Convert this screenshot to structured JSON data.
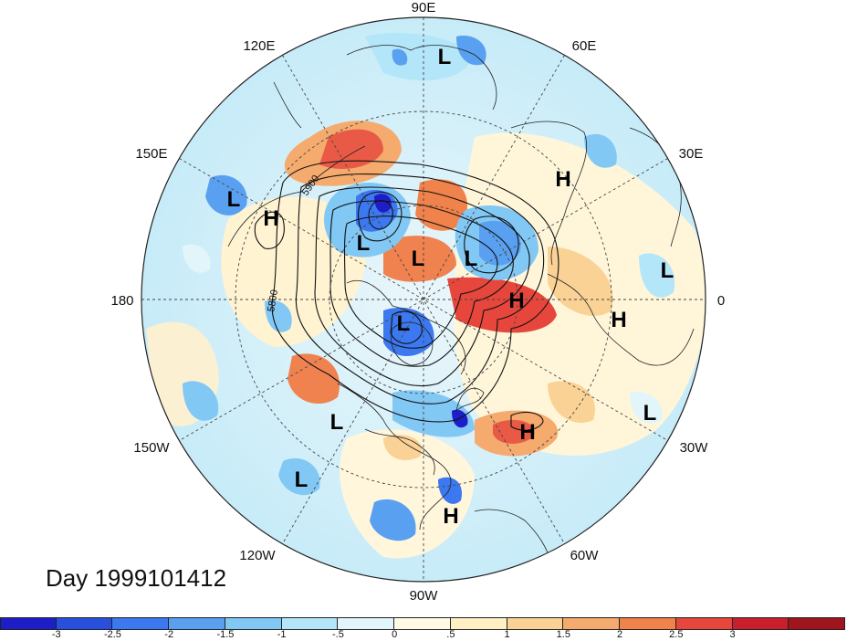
{
  "title": "Day 1999101412",
  "longitude_labels": {
    "top": "90E",
    "top_right": "60E",
    "right_upper": "30E",
    "right": "0",
    "right_lower": "30W",
    "bottom_right": "60W",
    "bottom": "90W",
    "bottom_left": "120W",
    "left_lower": "150W",
    "left": "180",
    "left_upper": "150E",
    "top_left": "120E"
  },
  "contour_labels": [
    "5900",
    "5800"
  ],
  "pressure_centers": [
    {
      "type": "L"
    },
    {
      "type": "L"
    },
    {
      "type": "L"
    },
    {
      "type": "L"
    },
    {
      "type": "L"
    },
    {
      "type": "L"
    },
    {
      "type": "L"
    },
    {
      "type": "L"
    },
    {
      "type": "L"
    },
    {
      "type": "H"
    },
    {
      "type": "H"
    },
    {
      "type": "H"
    },
    {
      "type": "H"
    },
    {
      "type": "H"
    },
    {
      "type": "H"
    }
  ],
  "colorbar": {
    "colors": [
      "#1e1ec8",
      "#2850dc",
      "#3c78f0",
      "#5aa0f0",
      "#82c8f5",
      "#b4e6fa",
      "#e1f5fa",
      "#fffae6",
      "#fff0c3",
      "#fad296",
      "#f5aa6e",
      "#f0824b",
      "#e6463c",
      "#c81e2d",
      "#a0141e"
    ],
    "ticks": [
      "-3",
      "-2.5",
      "-2",
      "-1.5",
      "-1",
      "-.5",
      "0",
      ".5",
      "1",
      "1.5",
      "2",
      "2.5",
      "3"
    ]
  }
}
